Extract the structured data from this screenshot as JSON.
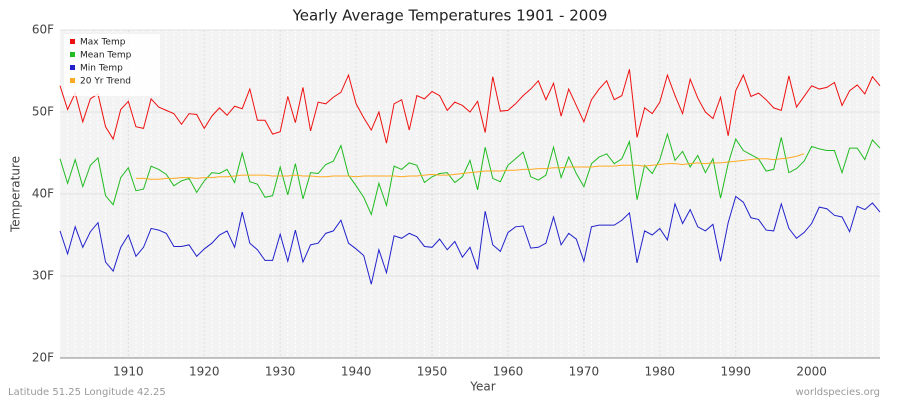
{
  "chart_data": {
    "type": "line",
    "title": "Yearly Average Temperatures 1901 - 2009",
    "x_label": "Year",
    "y_label": "Temperature",
    "footer_left": "Latitude 51.25 Longitude 42.25",
    "footer_right": "worldspecies.org",
    "x": [
      1901,
      1902,
      1903,
      1904,
      1905,
      1906,
      1907,
      1908,
      1909,
      1910,
      1911,
      1912,
      1913,
      1914,
      1915,
      1916,
      1917,
      1918,
      1919,
      1920,
      1921,
      1922,
      1923,
      1924,
      1925,
      1926,
      1927,
      1928,
      1929,
      1930,
      1931,
      1932,
      1933,
      1934,
      1935,
      1936,
      1937,
      1938,
      1939,
      1940,
      1941,
      1942,
      1943,
      1944,
      1945,
      1946,
      1947,
      1948,
      1949,
      1950,
      1951,
      1952,
      1953,
      1954,
      1955,
      1956,
      1957,
      1958,
      1959,
      1960,
      1961,
      1962,
      1963,
      1964,
      1965,
      1966,
      1967,
      1968,
      1969,
      1970,
      1971,
      1972,
      1973,
      1974,
      1975,
      1976,
      1977,
      1978,
      1979,
      1980,
      1981,
      1982,
      1983,
      1984,
      1985,
      1986,
      1987,
      1988,
      1989,
      1990,
      1991,
      1992,
      1993,
      1994,
      1995,
      1996,
      1997,
      1998,
      1999,
      2000,
      2001,
      2002,
      2003,
      2004,
      2005,
      2006,
      2007,
      2008,
      2009
    ],
    "series": [
      {
        "name": "Max Temp",
        "color": "#ee1111",
        "values": [
          53.2,
          50.3,
          52.3,
          48.8,
          51.6,
          52.2,
          48.2,
          46.7,
          50.3,
          51.3,
          48.2,
          48.0,
          51.6,
          50.6,
          50.2,
          49.8,
          48.5,
          49.8,
          49.7,
          48.0,
          49.5,
          50.5,
          49.6,
          50.7,
          50.4,
          52.8,
          49.0,
          49.0,
          47.3,
          47.6,
          51.9,
          48.7,
          53.0,
          47.7,
          51.2,
          51.0,
          51.8,
          52.4,
          54.5,
          51.0,
          49.3,
          47.8,
          50.0,
          46.2,
          51.0,
          51.5,
          47.8,
          52.0,
          51.6,
          52.5,
          52.0,
          50.2,
          51.2,
          50.8,
          50.0,
          51.3,
          47.5,
          54.3,
          50.1,
          50.2,
          51.0,
          52.0,
          52.8,
          53.8,
          51.5,
          53.5,
          49.5,
          52.8,
          50.8,
          48.8,
          51.5,
          52.8,
          53.8,
          51.5,
          52.0,
          55.2,
          46.9,
          50.5,
          49.8,
          51.2,
          54.5,
          52.0,
          49.8,
          54.0,
          51.7,
          50.0,
          49.2,
          51.8,
          47.1,
          52.6,
          54.5,
          51.9,
          52.3,
          51.5,
          50.5,
          50.2,
          54.4,
          50.6,
          51.9,
          53.2,
          52.8,
          53.0,
          53.6,
          50.8,
          52.6,
          53.3,
          52.2,
          54.3,
          53.2
        ]
      },
      {
        "name": "Mean Temp",
        "color": "#22bb22",
        "values": [
          44.3,
          41.3,
          44.2,
          40.9,
          43.5,
          44.4,
          39.8,
          38.7,
          42.0,
          43.2,
          40.4,
          40.6,
          43.4,
          43.0,
          42.4,
          41.0,
          41.6,
          41.9,
          40.2,
          41.6,
          42.6,
          42.5,
          43.0,
          41.4,
          45.0,
          41.5,
          41.2,
          39.6,
          39.8,
          43.3,
          39.9,
          43.7,
          39.4,
          42.6,
          42.5,
          43.6,
          44.0,
          45.9,
          42.3,
          41.0,
          39.6,
          37.5,
          41.3,
          38.6,
          43.4,
          43.0,
          43.8,
          43.5,
          41.4,
          42.1,
          42.5,
          42.6,
          41.4,
          42.1,
          44.1,
          40.5,
          45.7,
          41.9,
          41.5,
          43.5,
          44.3,
          45.1,
          42.1,
          41.7,
          42.3,
          45.7,
          42.0,
          44.5,
          42.5,
          40.9,
          43.7,
          44.5,
          44.9,
          43.7,
          44.3,
          46.4,
          39.3,
          43.5,
          42.5,
          44.2,
          47.3,
          44.1,
          45.2,
          43.3,
          44.7,
          42.6,
          44.3,
          39.5,
          43.7,
          46.7,
          45.3,
          44.8,
          44.3,
          42.8,
          43.0,
          46.9,
          42.6,
          43.1,
          44.0,
          45.8,
          45.5,
          45.3,
          45.3,
          42.6,
          45.6,
          45.6,
          44.2,
          46.6,
          45.6
        ]
      },
      {
        "name": "Min Temp",
        "color": "#2222cc",
        "values": [
          35.5,
          32.7,
          36.0,
          33.5,
          35.4,
          36.5,
          31.7,
          30.6,
          33.5,
          35.0,
          32.4,
          33.5,
          35.8,
          35.6,
          35.2,
          33.6,
          33.6,
          33.8,
          32.4,
          33.3,
          34.0,
          35.0,
          35.5,
          33.5,
          37.8,
          34.0,
          33.2,
          31.9,
          31.9,
          35.1,
          31.8,
          35.6,
          31.7,
          33.8,
          34.0,
          35.2,
          35.5,
          36.8,
          34.0,
          33.3,
          32.5,
          29.0,
          33.2,
          30.4,
          34.9,
          34.6,
          35.2,
          34.8,
          33.6,
          33.5,
          34.5,
          33.2,
          34.2,
          32.3,
          33.5,
          30.8,
          37.9,
          33.8,
          33.0,
          35.3,
          36.0,
          36.1,
          33.4,
          33.5,
          34.0,
          37.2,
          33.8,
          35.2,
          34.5,
          31.8,
          36.0,
          36.2,
          36.2,
          36.2,
          36.8,
          37.7,
          31.6,
          35.5,
          35.0,
          35.8,
          34.4,
          38.8,
          36.4,
          38.1,
          36.0,
          35.5,
          36.3,
          31.8,
          36.5,
          39.7,
          39.0,
          37.1,
          36.9,
          35.6,
          35.5,
          38.8,
          35.8,
          34.6,
          35.3,
          36.4,
          38.4,
          38.2,
          37.4,
          37.2,
          35.4,
          38.5,
          38.1,
          38.9,
          37.8
        ]
      },
      {
        "name": "20 Yr Trend",
        "color": "#ffaa22",
        "values": [
          null,
          null,
          null,
          null,
          null,
          null,
          null,
          null,
          null,
          null,
          41.9,
          41.9,
          41.8,
          41.8,
          41.9,
          41.9,
          42.0,
          42.0,
          41.9,
          42.0,
          42.0,
          42.1,
          42.1,
          42.2,
          42.3,
          42.3,
          42.3,
          42.3,
          42.2,
          42.2,
          42.2,
          42.3,
          42.2,
          42.2,
          42.1,
          42.1,
          42.2,
          42.2,
          42.2,
          42.1,
          42.2,
          42.2,
          42.2,
          42.2,
          42.2,
          42.1,
          42.2,
          42.2,
          42.3,
          42.4,
          42.3,
          42.3,
          42.4,
          42.5,
          42.6,
          42.7,
          42.8,
          42.8,
          42.8,
          42.9,
          42.9,
          43.0,
          43.0,
          43.1,
          43.1,
          43.2,
          43.2,
          43.3,
          43.3,
          43.3,
          43.3,
          43.4,
          43.4,
          43.4,
          43.5,
          43.5,
          43.5,
          43.4,
          43.5,
          43.6,
          43.7,
          43.7,
          43.6,
          43.7,
          43.8,
          43.7,
          43.8,
          43.8,
          43.9,
          44.0,
          44.1,
          44.2,
          44.3,
          44.3,
          44.2,
          44.3,
          44.4,
          44.6,
          44.9,
          null,
          null,
          null,
          null,
          null,
          null,
          null,
          null,
          null,
          null
        ]
      }
    ],
    "xlim": [
      1901,
      2009
    ],
    "xticks": [
      1910,
      1920,
      1930,
      1940,
      1950,
      1960,
      1970,
      1980,
      1990,
      2000
    ],
    "ylim": [
      20,
      60
    ],
    "yticks": [
      {
        "value": 20,
        "label": "20F"
      },
      {
        "value": 30,
        "label": "30F"
      },
      {
        "value": 40,
        "label": "40F"
      },
      {
        "value": 50,
        "label": "50F"
      },
      {
        "value": 60,
        "label": "60F"
      }
    ],
    "grid": true,
    "legend": "top-left"
  }
}
